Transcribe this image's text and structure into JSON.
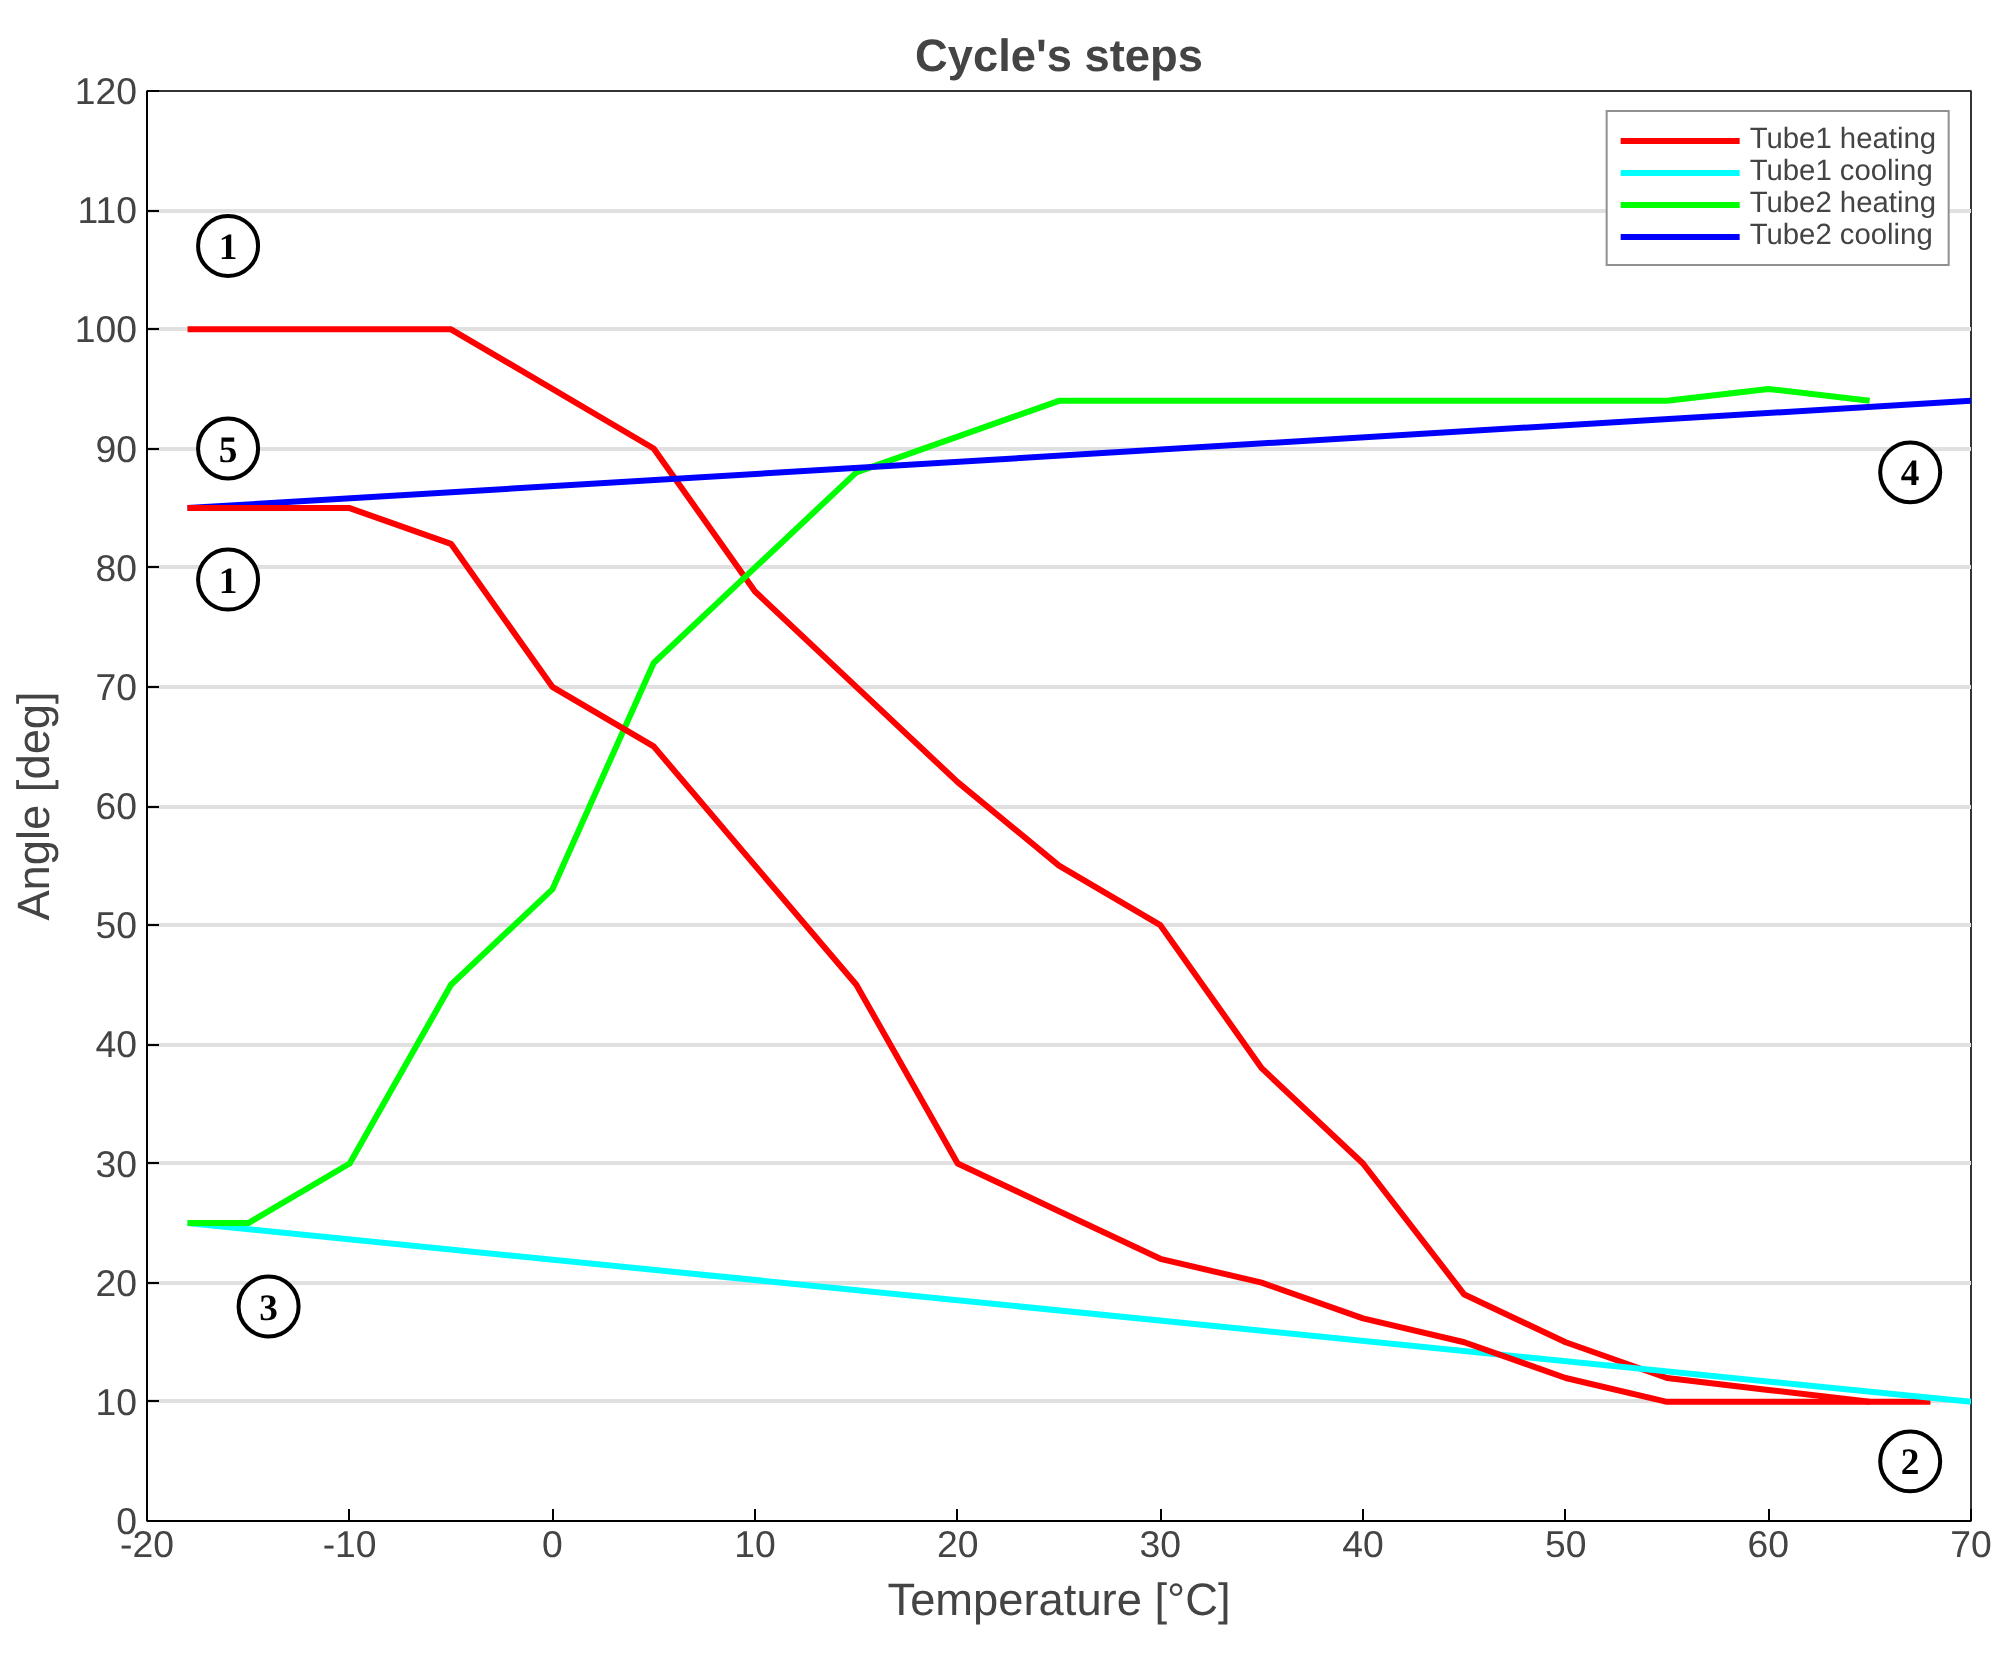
{
  "chart_data": {
    "type": "line",
    "title": "Cycle's steps",
    "xlabel": "Temperature [°C]",
    "ylabel": "Angle [deg]",
    "xlim": [
      -20,
      70
    ],
    "xticks": [
      -20,
      -10,
      0,
      10,
      20,
      30,
      40,
      50,
      60,
      70
    ],
    "ylim": [
      0,
      120
    ],
    "yticks": [
      0,
      10,
      20,
      30,
      40,
      50,
      60,
      70,
      80,
      90,
      100,
      110,
      120
    ],
    "grid": "y",
    "legend": "top right",
    "line_style": "solid",
    "marker": "none",
    "series": [
      {
        "name": "Tube1 heating",
        "color": "#ff0000",
        "x": [
          -18,
          -5,
          5,
          10,
          15,
          20,
          25,
          30,
          35,
          40,
          45,
          50,
          55,
          60,
          65,
          68
        ],
        "values": [
          100,
          100,
          90,
          78,
          70,
          62,
          55,
          50,
          38,
          30,
          19,
          15,
          12,
          11,
          10,
          10
        ]
      },
      {
        "name": "Tube1 cooling",
        "color": "#00ffff",
        "x": [
          -18,
          70
        ],
        "values": [
          25,
          10
        ]
      },
      {
        "name": "Tube2 heating",
        "color": "#00ff00",
        "x": [
          -18,
          -15,
          -10,
          -5,
          0,
          5,
          10,
          15,
          20,
          25,
          55,
          60,
          65
        ],
        "values": [
          25,
          25,
          30,
          45,
          53,
          72,
          80,
          88,
          91,
          94,
          94,
          95,
          94
        ]
      },
      {
        "name": "Tube2 cooling",
        "color": "#0000ff",
        "x": [
          -18,
          70
        ],
        "values": [
          85,
          94
        ]
      },
      {
        "color": "#ff0000",
        "x": [
          -18,
          -10,
          -5,
          0,
          5,
          10,
          15,
          20,
          25,
          30,
          35,
          40,
          45,
          50,
          55,
          60,
          65
        ],
        "values": [
          85,
          85,
          82,
          70,
          65,
          55,
          45,
          30,
          26,
          22,
          20,
          17,
          15,
          12,
          10,
          10,
          10
        ]
      }
    ],
    "annotations": [
      {
        "text": "1",
        "x": -16,
        "y": 107
      },
      {
        "text": "5",
        "x": -16,
        "y": 90
      },
      {
        "text": "1",
        "x": -16,
        "y": 79
      },
      {
        "text": "3",
        "x": -14,
        "y": 18
      },
      {
        "text": "4",
        "x": 67,
        "y": 88
      },
      {
        "text": "2",
        "x": 67,
        "y": 5
      }
    ]
  }
}
